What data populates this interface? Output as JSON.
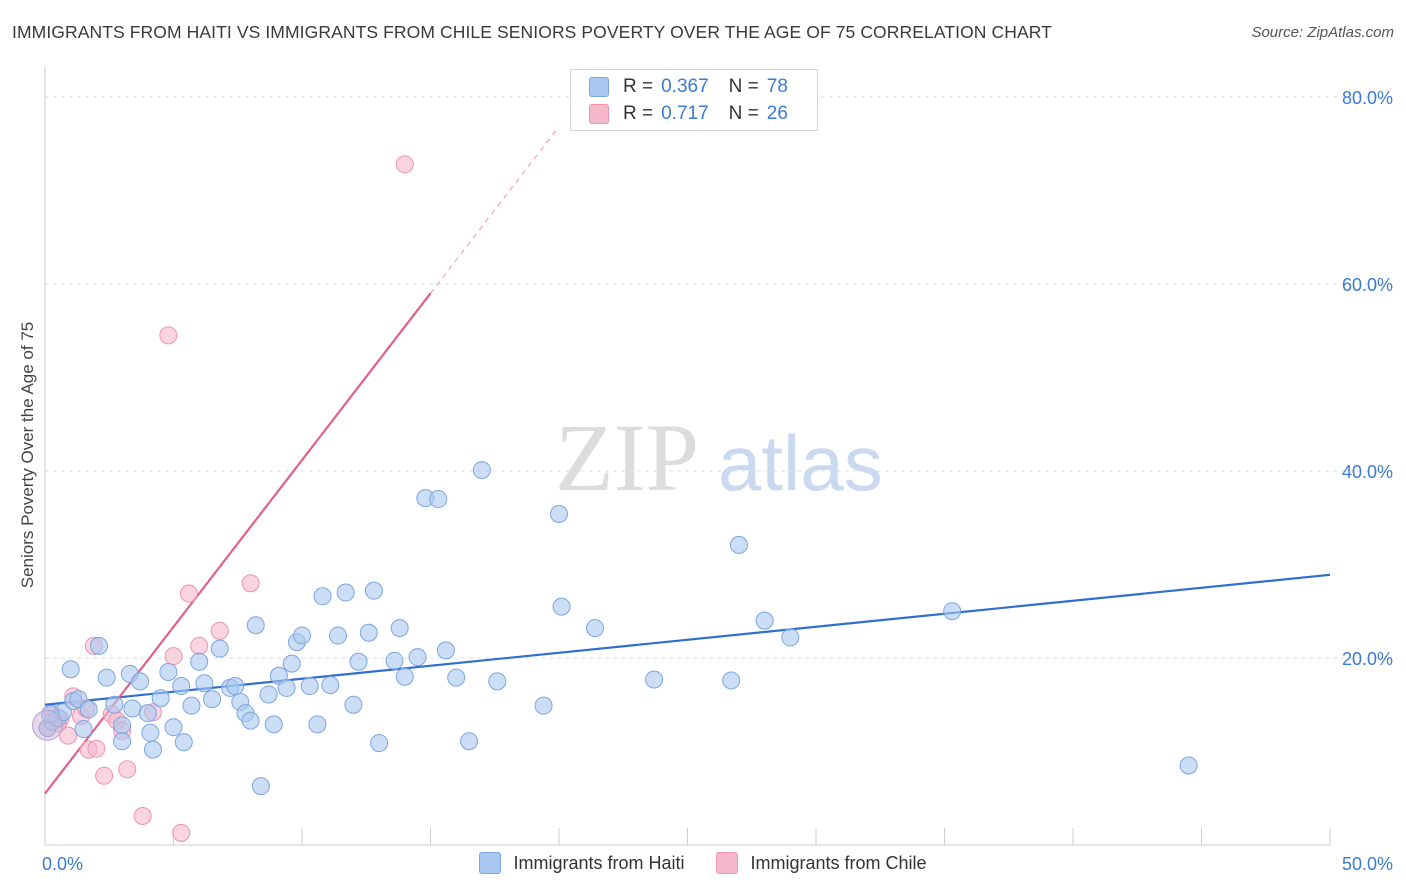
{
  "title": "IMMIGRANTS FROM HAITI VS IMMIGRANTS FROM CHILE SENIORS POVERTY OVER THE AGE OF 75 CORRELATION CHART",
  "source": "Source: ZipAtlas.com",
  "watermark": {
    "zip": "ZIP",
    "atlas": "atlas"
  },
  "legend_top": [
    {
      "r_label": "R =",
      "r_value": "0.367",
      "n_label": "N =",
      "n_value": "78"
    },
    {
      "r_label": "R =",
      "r_value": "0.717",
      "n_label": "N =",
      "n_value": "26"
    }
  ],
  "legend_bottom": [
    {
      "label": "Immigrants from Haiti"
    },
    {
      "label": "Immigrants from Chile"
    }
  ],
  "colors": {
    "haiti_fill": "#a8c8f0",
    "haiti_stroke": "#7aa6e0",
    "haiti_line": "#2f6fce",
    "chile_fill": "#f6b8cb",
    "chile_stroke": "#ee93b0",
    "chile_line": "#e0608a",
    "tick_label": "#3a7bd5",
    "grid": "#dddddd"
  },
  "chart_data": {
    "type": "scatter",
    "title": "IMMIGRANTS FROM HAITI VS IMMIGRANTS FROM CHILE SENIORS POVERTY OVER THE AGE OF 75 CORRELATION CHART",
    "xlabel": "",
    "ylabel": "Seniors Poverty Over the Age of 75",
    "xlim": [
      0,
      50
    ],
    "ylim": [
      0,
      80
    ],
    "x_tick_labels": [
      "0.0%",
      "50.0%"
    ],
    "y_ticks": [
      20,
      40,
      60,
      80
    ],
    "y_tick_labels": [
      "20.0%",
      "40.0%",
      "60.0%",
      "80.0%"
    ],
    "series": [
      {
        "name": "Immigrants from Haiti",
        "R": 0.367,
        "N": 78,
        "trend": {
          "x": [
            0,
            50
          ],
          "y": [
            15.0,
            28.9
          ],
          "dashed_x": []
        },
        "points": [
          [
            0.1,
            12.5
          ],
          [
            0.3,
            13.2
          ],
          [
            0.5,
            13.6
          ],
          [
            0.7,
            14.2
          ],
          [
            1.0,
            18.8
          ],
          [
            1.1,
            15.4
          ],
          [
            1.3,
            15.6
          ],
          [
            1.5,
            12.4
          ],
          [
            1.7,
            14.5
          ],
          [
            2.1,
            21.3
          ],
          [
            2.4,
            17.9
          ],
          [
            2.7,
            15.0
          ],
          [
            3.0,
            12.8
          ],
          [
            3.0,
            11.1
          ],
          [
            3.3,
            18.3
          ],
          [
            3.4,
            14.6
          ],
          [
            3.7,
            17.5
          ],
          [
            4.0,
            14.1
          ],
          [
            4.1,
            12.0
          ],
          [
            4.2,
            10.2
          ],
          [
            4.5,
            15.7
          ],
          [
            4.8,
            18.5
          ],
          [
            5.0,
            12.6
          ],
          [
            5.3,
            17.0
          ],
          [
            5.4,
            11.0
          ],
          [
            5.7,
            14.9
          ],
          [
            6.0,
            19.6
          ],
          [
            6.2,
            17.3
          ],
          [
            6.5,
            15.6
          ],
          [
            6.8,
            21.0
          ],
          [
            7.2,
            16.8
          ],
          [
            7.4,
            17.0
          ],
          [
            7.6,
            15.3
          ],
          [
            7.8,
            14.1
          ],
          [
            8.0,
            13.3
          ],
          [
            8.2,
            23.5
          ],
          [
            8.4,
            6.3
          ],
          [
            8.7,
            16.1
          ],
          [
            8.9,
            12.9
          ],
          [
            9.1,
            18.1
          ],
          [
            9.4,
            16.8
          ],
          [
            9.6,
            19.4
          ],
          [
            9.8,
            21.7
          ],
          [
            10.0,
            22.4
          ],
          [
            10.3,
            17.0
          ],
          [
            10.6,
            12.9
          ],
          [
            10.8,
            26.6
          ],
          [
            11.1,
            17.1
          ],
          [
            11.4,
            22.4
          ],
          [
            11.7,
            27.0
          ],
          [
            12.0,
            15.0
          ],
          [
            12.2,
            19.6
          ],
          [
            12.6,
            22.7
          ],
          [
            12.8,
            27.2
          ],
          [
            13.0,
            10.9
          ],
          [
            13.6,
            19.7
          ],
          [
            13.8,
            23.2
          ],
          [
            14.0,
            18.0
          ],
          [
            14.5,
            20.1
          ],
          [
            14.8,
            37.1
          ],
          [
            15.3,
            37.0
          ],
          [
            15.6,
            20.8
          ],
          [
            16.0,
            17.9
          ],
          [
            16.5,
            11.1
          ],
          [
            17.0,
            40.1
          ],
          [
            17.6,
            17.5
          ],
          [
            19.4,
            14.9
          ],
          [
            20.0,
            35.4
          ],
          [
            20.1,
            25.5
          ],
          [
            21.4,
            23.2
          ],
          [
            23.7,
            17.7
          ],
          [
            26.7,
            17.6
          ],
          [
            27.0,
            32.1
          ],
          [
            28.0,
            24.0
          ],
          [
            29.0,
            22.2
          ],
          [
            35.3,
            25.0
          ],
          [
            44.5,
            8.5
          ],
          [
            0.2,
            14.0
          ]
        ]
      },
      {
        "name": "Immigrants from Chile",
        "R": 0.717,
        "N": 26,
        "trend": {
          "x": [
            0,
            15
          ],
          "y": [
            5.5,
            59.0
          ],
          "dashed_x": [
            15,
            20
          ]
        },
        "points": [
          [
            0.1,
            12.5
          ],
          [
            0.3,
            14.0
          ],
          [
            0.6,
            13.5
          ],
          [
            0.9,
            11.7
          ],
          [
            1.1,
            15.9
          ],
          [
            1.4,
            13.8
          ],
          [
            1.6,
            14.6
          ],
          [
            1.7,
            10.2
          ],
          [
            1.9,
            21.3
          ],
          [
            2.0,
            10.3
          ],
          [
            2.3,
            7.4
          ],
          [
            2.6,
            14.0
          ],
          [
            2.8,
            13.3
          ],
          [
            3.0,
            12.2
          ],
          [
            3.2,
            8.1
          ],
          [
            3.8,
            3.1
          ],
          [
            4.2,
            14.2
          ],
          [
            4.8,
            54.5
          ],
          [
            5.0,
            20.2
          ],
          [
            5.3,
            1.3
          ],
          [
            5.6,
            26.9
          ],
          [
            6.0,
            21.3
          ],
          [
            6.8,
            22.9
          ],
          [
            8.0,
            28.0
          ],
          [
            14.0,
            72.8
          ],
          [
            0.5,
            13.0
          ]
        ]
      }
    ]
  }
}
